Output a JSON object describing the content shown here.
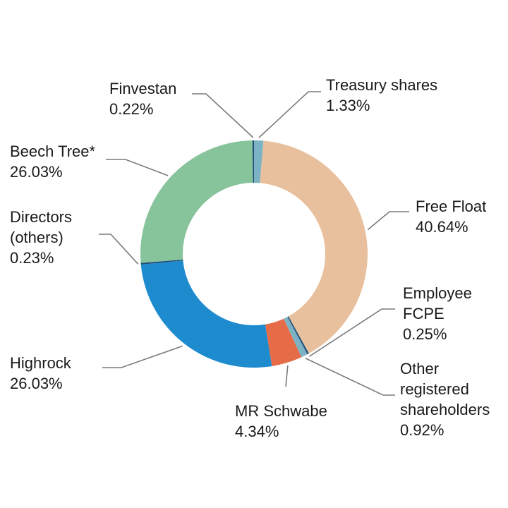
{
  "chart_data": {
    "type": "pie",
    "donut": true,
    "slices": [
      {
        "label": "Treasury shares",
        "value": 1.33,
        "value_label": "1.33%",
        "color": "#7cb3c4"
      },
      {
        "label": "Free Float",
        "value": 40.64,
        "value_label": "40.64%",
        "color": "#e8c09d"
      },
      {
        "label": "Employee FCPE",
        "label_lines": [
          "Employee",
          "FCPE"
        ],
        "value": 0.25,
        "value_label": "0.25%",
        "color": "#1f4e79"
      },
      {
        "label": "Other registered shareholders",
        "label_lines": [
          "Other",
          "registered",
          "shareholders"
        ],
        "value": 0.92,
        "value_label": "0.92%",
        "color": "#7cb3c4"
      },
      {
        "label": "MR Schwabe",
        "value": 4.34,
        "value_label": "4.34%",
        "color": "#e56c47"
      },
      {
        "label": "Highrock",
        "value": 26.03,
        "value_label": "26.03%",
        "color": "#1e8bcf"
      },
      {
        "label": "Directors (others)",
        "label_lines": [
          "Directors",
          "(others)"
        ],
        "value": 0.23,
        "value_label": "0.23%",
        "color": "#1f4e79"
      },
      {
        "label": "Beech Tree*",
        "value": 26.03,
        "value_label": "26.03%",
        "color": "#87c49b"
      },
      {
        "label": "Finvestan",
        "value": 0.22,
        "value_label": "0.22%",
        "color": "#1f4e79"
      }
    ]
  }
}
